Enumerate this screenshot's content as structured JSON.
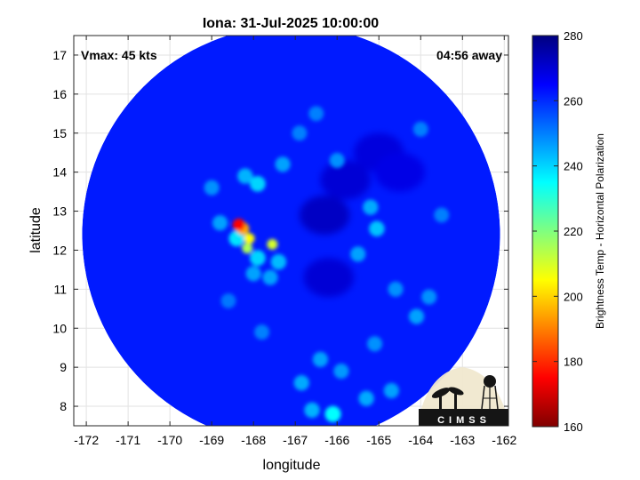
{
  "chart_data": {
    "type": "heatmap",
    "title": "Iona: 31-Jul-2025 10:00:00",
    "annotations": {
      "vmax": "Vmax: 45 kts",
      "time_away": "04:56 away"
    },
    "xlabel": "longitude",
    "ylabel": "latitude",
    "xlim": [
      -172.3,
      -161.9
    ],
    "ylim": [
      7.5,
      17.5
    ],
    "x_ticks": [
      -172,
      -171,
      -170,
      -169,
      -168,
      -167,
      -166,
      -165,
      -164,
      -163,
      -162
    ],
    "y_ticks": [
      8,
      9,
      10,
      11,
      12,
      13,
      14,
      15,
      16,
      17
    ],
    "colorbar": {
      "label": "Brightness Temp - Horizontal Polarization",
      "range": [
        160,
        280
      ],
      "ticks": [
        160,
        180,
        200,
        220,
        240,
        260,
        280
      ],
      "colormap": "jet"
    },
    "swath": {
      "center": [
        -167.1,
        12.4
      ],
      "radius_deg": 5.0
    },
    "background_value": 262,
    "features": [
      {
        "lon": -168.35,
        "lat": 12.65,
        "value": 175
      },
      {
        "lon": -168.25,
        "lat": 12.55,
        "value": 195
      },
      {
        "lon": -168.1,
        "lat": 12.3,
        "value": 205
      },
      {
        "lon": -168.15,
        "lat": 12.05,
        "value": 215
      },
      {
        "lon": -167.55,
        "lat": 12.15,
        "value": 210
      },
      {
        "lon": -168.4,
        "lat": 12.3,
        "value": 238
      },
      {
        "lon": -167.9,
        "lat": 11.8,
        "value": 240
      },
      {
        "lon": -167.4,
        "lat": 11.7,
        "value": 243
      },
      {
        "lon": -167.6,
        "lat": 11.3,
        "value": 246
      },
      {
        "lon": -168.0,
        "lat": 11.4,
        "value": 246
      },
      {
        "lon": -168.8,
        "lat": 12.7,
        "value": 246
      },
      {
        "lon": -167.9,
        "lat": 13.7,
        "value": 240
      },
      {
        "lon": -168.2,
        "lat": 13.9,
        "value": 244
      },
      {
        "lon": -169.0,
        "lat": 13.6,
        "value": 248
      },
      {
        "lon": -167.3,
        "lat": 14.2,
        "value": 246
      },
      {
        "lon": -166.0,
        "lat": 14.3,
        "value": 248
      },
      {
        "lon": -165.2,
        "lat": 13.1,
        "value": 245
      },
      {
        "lon": -165.05,
        "lat": 12.55,
        "value": 242
      },
      {
        "lon": -165.5,
        "lat": 11.9,
        "value": 246
      },
      {
        "lon": -166.9,
        "lat": 15.0,
        "value": 250
      },
      {
        "lon": -166.5,
        "lat": 15.5,
        "value": 250
      },
      {
        "lon": -164.0,
        "lat": 15.1,
        "value": 250
      },
      {
        "lon": -163.5,
        "lat": 12.9,
        "value": 250
      },
      {
        "lon": -164.6,
        "lat": 11.0,
        "value": 248
      },
      {
        "lon": -163.8,
        "lat": 10.8,
        "value": 248
      },
      {
        "lon": -164.1,
        "lat": 10.3,
        "value": 246
      },
      {
        "lon": -165.1,
        "lat": 9.6,
        "value": 248
      },
      {
        "lon": -166.4,
        "lat": 9.2,
        "value": 246
      },
      {
        "lon": -165.9,
        "lat": 8.9,
        "value": 247
      },
      {
        "lon": -166.85,
        "lat": 8.6,
        "value": 245
      },
      {
        "lon": -165.3,
        "lat": 8.2,
        "value": 245
      },
      {
        "lon": -166.1,
        "lat": 7.8,
        "value": 235
      },
      {
        "lon": -166.6,
        "lat": 7.9,
        "value": 244
      },
      {
        "lon": -164.7,
        "lat": 8.4,
        "value": 246
      },
      {
        "lon": -167.8,
        "lat": 9.9,
        "value": 250
      },
      {
        "lon": -168.6,
        "lat": 10.7,
        "value": 251
      }
    ],
    "cold_patches": [
      {
        "lon": -165.8,
        "lat": 13.8,
        "value": 270
      },
      {
        "lon": -166.3,
        "lat": 12.9,
        "value": 272
      },
      {
        "lon": -165.0,
        "lat": 14.5,
        "value": 269
      },
      {
        "lon": -166.2,
        "lat": 11.3,
        "value": 270
      },
      {
        "lon": -164.5,
        "lat": 14.0,
        "value": 268
      }
    ]
  },
  "logo": {
    "text": "CIMSS"
  }
}
